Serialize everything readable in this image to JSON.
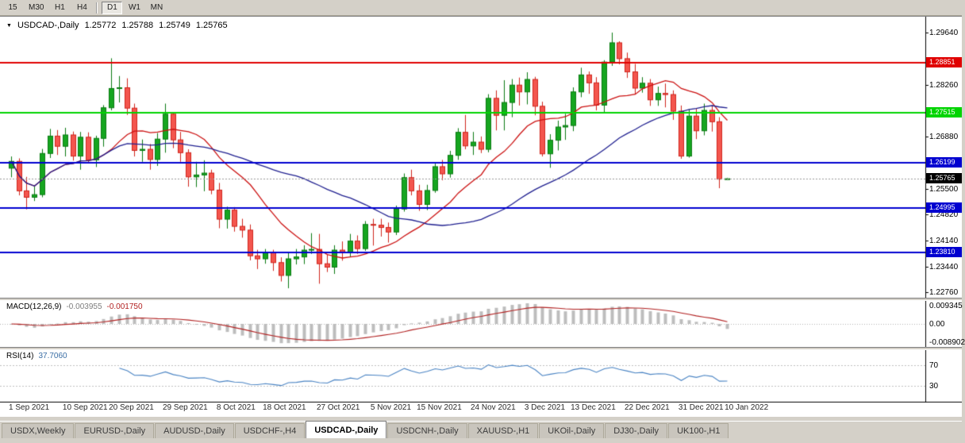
{
  "toolbar": {
    "timeframes": [
      "15",
      "M30",
      "H1",
      "H4",
      "D1",
      "W1",
      "MN"
    ],
    "active_timeframe": "D1"
  },
  "chart_title": {
    "dropdown_icon": "▼",
    "symbol": "USDCAD-,Daily",
    "open": "1.25772",
    "high": "1.25788",
    "low": "1.25749",
    "close": "1.25765"
  },
  "macd_panel": {
    "label": "MACD(12,26,9)",
    "main_value": "-0.003955",
    "signal_value": "-0.001750",
    "axis_max": "0.009345",
    "axis_zero": "0.00",
    "axis_min": "-0.008902",
    "params": {
      "fast": 12,
      "slow": 26,
      "signal": 9
    },
    "colors": {
      "histogram": "#bdbdbd",
      "signal": "#b22222"
    }
  },
  "rsi_panel": {
    "label": "RSI(14)",
    "value": "37.7060",
    "period": 14,
    "levels": [
      70,
      30
    ],
    "color": "#4a84c4"
  },
  "price_axis": {
    "max": 1.3002,
    "min": 1.2262,
    "ticks": [
      "1.29640",
      "1.28260",
      "1.26880",
      "1.25500",
      "1.24820",
      "1.24140",
      "1.23440",
      "1.22760"
    ]
  },
  "hlines": [
    {
      "value": 1.28851,
      "label": "1.28851",
      "color": "#e00000"
    },
    {
      "value": 1.27515,
      "label": "1.27515",
      "color": "#00d400"
    },
    {
      "value": 1.26199,
      "label": "1.26199",
      "color": "#0000d0"
    },
    {
      "value": 1.24995,
      "label": "1.24995",
      "color": "#0000d0"
    },
    {
      "value": 1.2381,
      "label": "1.23810",
      "color": "#0000d0"
    }
  ],
  "current_price": {
    "value": 1.25765,
    "label": "1.25765",
    "bg": "#000000"
  },
  "date_axis": [
    {
      "label": "1 Sep 2021",
      "index": 0
    },
    {
      "label": "10 Sep 2021",
      "index": 7
    },
    {
      "label": "20 Sep 2021",
      "index": 13
    },
    {
      "label": "29 Sep 2021",
      "index": 20
    },
    {
      "label": "8 Oct 2021",
      "index": 27
    },
    {
      "label": "18 Oct 2021",
      "index": 33
    },
    {
      "label": "27 Oct 2021",
      "index": 40
    },
    {
      "label": "5 Nov 2021",
      "index": 47
    },
    {
      "label": "15 Nov 2021",
      "index": 53
    },
    {
      "label": "24 Nov 2021",
      "index": 60
    },
    {
      "label": "3 Dec 2021",
      "index": 67
    },
    {
      "label": "13 Dec 2021",
      "index": 73
    },
    {
      "label": "22 Dec 2021",
      "index": 80
    },
    {
      "label": "31 Dec 2021",
      "index": 87
    },
    {
      "label": "10 Jan 2022",
      "index": 93
    }
  ],
  "chart_data": {
    "type": "candlestick",
    "symbol": "USDCAD",
    "timeframe": "Daily",
    "ylim": [
      1.2262,
      1.3002
    ],
    "ma_fast": {
      "period": 13,
      "color": "#cc1111"
    },
    "ma_slow": {
      "period": 34,
      "color": "#202090"
    },
    "candle_colors": {
      "up_fill": "#16a620",
      "up_edge": "#0a7a12",
      "down_fill": "#f4564e",
      "down_edge": "#cf251d"
    },
    "candles": [
      [
        1.2605,
        1.2636,
        1.2581,
        1.2623
      ],
      [
        1.2623,
        1.2631,
        1.2533,
        1.2545
      ],
      [
        1.2545,
        1.2582,
        1.2496,
        1.2528
      ],
      [
        1.2528,
        1.2559,
        1.2518,
        1.2535
      ],
      [
        1.2535,
        1.2656,
        1.2528,
        1.2644
      ],
      [
        1.2644,
        1.2709,
        1.2632,
        1.269
      ],
      [
        1.269,
        1.2706,
        1.264,
        1.2663
      ],
      [
        1.2663,
        1.2712,
        1.2636,
        1.2693
      ],
      [
        1.2693,
        1.2702,
        1.2625,
        1.2637
      ],
      [
        1.2637,
        1.2701,
        1.2601,
        1.2687
      ],
      [
        1.2687,
        1.27,
        1.262,
        1.2627
      ],
      [
        1.2627,
        1.2691,
        1.2608,
        1.2684
      ],
      [
        1.2684,
        1.2772,
        1.2662,
        1.2765
      ],
      [
        1.2765,
        1.2896,
        1.2758,
        1.2816
      ],
      [
        1.2816,
        1.2849,
        1.2779,
        1.2818
      ],
      [
        1.2818,
        1.2843,
        1.2746,
        1.2764
      ],
      [
        1.2764,
        1.2776,
        1.2636,
        1.2652
      ],
      [
        1.2652,
        1.2681,
        1.2622,
        1.2655
      ],
      [
        1.2655,
        1.2669,
        1.2601,
        1.2628
      ],
      [
        1.2628,
        1.2698,
        1.2611,
        1.2682
      ],
      [
        1.2682,
        1.2776,
        1.2646,
        1.2748
      ],
      [
        1.2748,
        1.2753,
        1.2658,
        1.268
      ],
      [
        1.268,
        1.2701,
        1.2622,
        1.2646
      ],
      [
        1.2646,
        1.2655,
        1.2556,
        1.2582
      ],
      [
        1.2582,
        1.2622,
        1.2555,
        1.2587
      ],
      [
        1.2587,
        1.2626,
        1.2544,
        1.2592
      ],
      [
        1.2592,
        1.2601,
        1.2536,
        1.2547
      ],
      [
        1.2547,
        1.2566,
        1.2446,
        1.247
      ],
      [
        1.247,
        1.2503,
        1.2445,
        1.2494
      ],
      [
        1.2494,
        1.2502,
        1.2437,
        1.2451
      ],
      [
        1.2451,
        1.2471,
        1.2421,
        1.2441
      ],
      [
        1.2441,
        1.2456,
        1.2361,
        1.2373
      ],
      [
        1.2373,
        1.2389,
        1.2338,
        1.2365
      ],
      [
        1.2365,
        1.2391,
        1.2352,
        1.2381
      ],
      [
        1.2381,
        1.2389,
        1.2333,
        1.2355
      ],
      [
        1.2355,
        1.2369,
        1.2305,
        1.2321
      ],
      [
        1.2321,
        1.2381,
        1.2287,
        1.2365
      ],
      [
        1.2365,
        1.2391,
        1.235,
        1.237
      ],
      [
        1.237,
        1.2401,
        1.2351,
        1.2388
      ],
      [
        1.2388,
        1.2433,
        1.2378,
        1.239
      ],
      [
        1.239,
        1.2431,
        1.2299,
        1.2352
      ],
      [
        1.2352,
        1.2376,
        1.233,
        1.2343
      ],
      [
        1.2343,
        1.2401,
        1.2325,
        1.2388
      ],
      [
        1.2388,
        1.2411,
        1.236,
        1.2382
      ],
      [
        1.2382,
        1.2431,
        1.237,
        1.2412
      ],
      [
        1.2412,
        1.2427,
        1.2378,
        1.2392
      ],
      [
        1.2392,
        1.2465,
        1.2386,
        1.2456
      ],
      [
        1.2456,
        1.2471,
        1.24,
        1.2454
      ],
      [
        1.2454,
        1.2471,
        1.2424,
        1.2448
      ],
      [
        1.2448,
        1.2461,
        1.2408,
        1.2436
      ],
      [
        1.2436,
        1.2506,
        1.2428,
        1.2497
      ],
      [
        1.2497,
        1.2591,
        1.249,
        1.258
      ],
      [
        1.258,
        1.2601,
        1.2533,
        1.2545
      ],
      [
        1.2545,
        1.2561,
        1.2492,
        1.2509
      ],
      [
        1.2509,
        1.2561,
        1.2494,
        1.2546
      ],
      [
        1.2546,
        1.2621,
        1.254,
        1.2609
      ],
      [
        1.2609,
        1.2627,
        1.2573,
        1.259
      ],
      [
        1.259,
        1.2651,
        1.258,
        1.2639
      ],
      [
        1.2639,
        1.2711,
        1.2627,
        1.27
      ],
      [
        1.27,
        1.2746,
        1.2655,
        1.2664
      ],
      [
        1.2664,
        1.2701,
        1.264,
        1.2674
      ],
      [
        1.2674,
        1.2689,
        1.2645,
        1.2655
      ],
      [
        1.2655,
        1.2801,
        1.2647,
        1.279
      ],
      [
        1.279,
        1.2811,
        1.2705,
        1.2745
      ],
      [
        1.2745,
        1.2838,
        1.2705,
        1.2779
      ],
      [
        1.2779,
        1.2841,
        1.274,
        1.2825
      ],
      [
        1.2825,
        1.2845,
        1.2771,
        1.2807
      ],
      [
        1.2807,
        1.2859,
        1.2774,
        1.284
      ],
      [
        1.284,
        1.2847,
        1.2745,
        1.2769
      ],
      [
        1.2769,
        1.2781,
        1.2636,
        1.2643
      ],
      [
        1.2643,
        1.2695,
        1.2606,
        1.2679
      ],
      [
        1.2679,
        1.2731,
        1.2652,
        1.2714
      ],
      [
        1.2714,
        1.2749,
        1.268,
        1.2718
      ],
      [
        1.2718,
        1.2819,
        1.2703,
        1.2807
      ],
      [
        1.2807,
        1.2871,
        1.2793,
        1.2852
      ],
      [
        1.2852,
        1.2861,
        1.2802,
        1.2831
      ],
      [
        1.2831,
        1.2846,
        1.2758,
        1.2772
      ],
      [
        1.2772,
        1.2891,
        1.2752,
        1.2886
      ],
      [
        1.2886,
        1.2964,
        1.2876,
        1.2937
      ],
      [
        1.2937,
        1.2941,
        1.288,
        1.2895
      ],
      [
        1.2895,
        1.2911,
        1.2844,
        1.286
      ],
      [
        1.286,
        1.2881,
        1.28,
        1.2817
      ],
      [
        1.2817,
        1.2846,
        1.2805,
        1.283
      ],
      [
        1.283,
        1.2841,
        1.277,
        1.2786
      ],
      [
        1.2786,
        1.2821,
        1.277,
        1.2803
      ],
      [
        1.2803,
        1.2829,
        1.2766,
        1.28
      ],
      [
        1.28,
        1.2811,
        1.2733,
        1.2756
      ],
      [
        1.2756,
        1.2771,
        1.263,
        1.2637
      ],
      [
        1.2637,
        1.2761,
        1.2633,
        1.2743
      ],
      [
        1.2743,
        1.2763,
        1.2682,
        1.2704
      ],
      [
        1.2704,
        1.2776,
        1.2692,
        1.2758
      ],
      [
        1.2758,
        1.2772,
        1.2702,
        1.2728
      ],
      [
        1.2728,
        1.274,
        1.2552,
        1.2576
      ],
      [
        1.2577,
        1.2579,
        1.2575,
        1.2577
      ]
    ]
  },
  "tabs": [
    {
      "label": "USDX,Weekly",
      "active": false
    },
    {
      "label": "EURUSD-,Daily",
      "active": false
    },
    {
      "label": "AUDUSD-,Daily",
      "active": false
    },
    {
      "label": "USDCHF-,H4",
      "active": false
    },
    {
      "label": "USDCAD-,Daily",
      "active": true
    },
    {
      "label": "USDCNH-,Daily",
      "active": false
    },
    {
      "label": "XAUUSD-,H1",
      "active": false
    },
    {
      "label": "UKOil-,Daily",
      "active": false
    },
    {
      "label": "DJ30-,Daily",
      "active": false
    },
    {
      "label": "UK100-,H1",
      "active": false
    }
  ]
}
